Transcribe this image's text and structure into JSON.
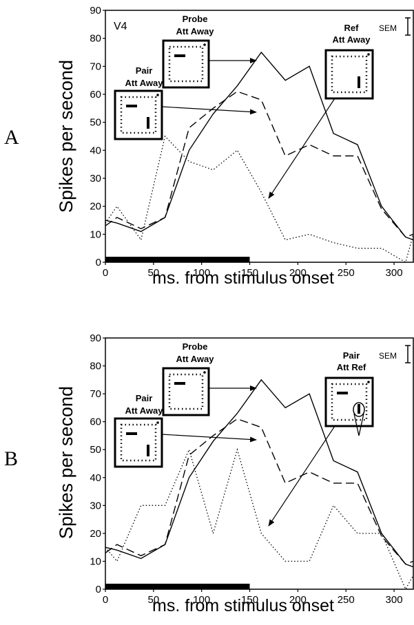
{
  "chart_data": [
    {
      "panel": "A",
      "type": "line",
      "area_label": "V4",
      "sem_label": "SEM",
      "xlabel": "ms. from stimulus onset",
      "ylabel": "Spikes per second",
      "xlim": [
        0,
        320
      ],
      "ylim": [
        0,
        90
      ],
      "xticks": [
        0,
        50,
        100,
        150,
        200,
        250,
        300
      ],
      "yticks": [
        0,
        10,
        20,
        30,
        40,
        50,
        60,
        70,
        80,
        90
      ],
      "stimulus_bar_ms": [
        0,
        150
      ],
      "x": [
        0,
        12,
        37,
        62,
        87,
        112,
        137,
        162,
        187,
        212,
        237,
        262,
        287,
        312,
        320
      ],
      "series": [
        {
          "style": "solid",
          "values": [
            15,
            14,
            11,
            16,
            40,
            53,
            63,
            75,
            65,
            70,
            46,
            42,
            20,
            9,
            8
          ]
        },
        {
          "style": "dashed",
          "values": [
            13,
            16,
            12,
            16,
            48,
            55,
            61,
            58,
            38,
            42,
            38,
            38,
            19,
            9,
            10
          ]
        },
        {
          "style": "dotted",
          "values": [
            14,
            20,
            8,
            45,
            36,
            33,
            40,
            25,
            8,
            10,
            7,
            5,
            5,
            0,
            10
          ]
        }
      ],
      "insets": [
        {
          "line1": "Pair",
          "line2": "Att Away"
        },
        {
          "line1": "Probe",
          "line2": "Att Away"
        },
        {
          "line1": "Ref",
          "line2": "Att Away"
        }
      ]
    },
    {
      "panel": "B",
      "type": "line",
      "sem_label": "SEM",
      "xlabel": "ms. from stimulus onset",
      "ylabel": "Spikes per second",
      "xlim": [
        0,
        320
      ],
      "ylim": [
        0,
        90
      ],
      "xticks": [
        0,
        50,
        100,
        150,
        200,
        250,
        300
      ],
      "yticks": [
        0,
        10,
        20,
        30,
        40,
        50,
        60,
        70,
        80,
        90
      ],
      "stimulus_bar_ms": [
        0,
        150
      ],
      "x": [
        0,
        12,
        37,
        62,
        87,
        112,
        137,
        162,
        187,
        212,
        237,
        262,
        287,
        312,
        320
      ],
      "series": [
        {
          "style": "solid",
          "values": [
            15,
            14,
            11,
            16,
            40,
            53,
            63,
            75,
            65,
            70,
            46,
            42,
            20,
            9,
            8
          ]
        },
        {
          "style": "dashed",
          "values": [
            13,
            16,
            12,
            16,
            48,
            55,
            61,
            58,
            38,
            42,
            38,
            38,
            19,
            9,
            10
          ]
        },
        {
          "style": "dotted",
          "values": [
            15,
            10,
            30,
            30,
            50,
            20,
            50,
            20,
            10,
            10,
            30,
            20,
            20,
            0,
            5
          ]
        }
      ],
      "insets": [
        {
          "line1": "Pair",
          "line2": "Att Away"
        },
        {
          "line1": "Probe",
          "line2": "Att Away"
        },
        {
          "line1": "Pair",
          "line2": "Att Ref"
        }
      ]
    }
  ]
}
